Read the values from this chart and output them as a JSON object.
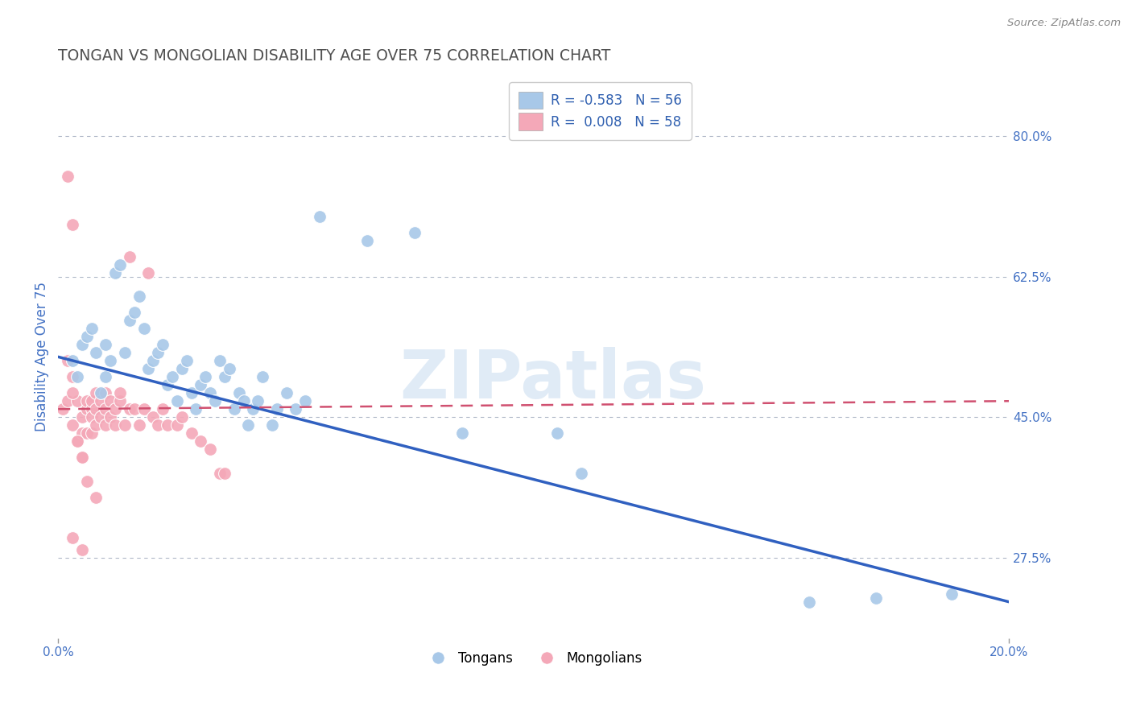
{
  "title": "TONGAN VS MONGOLIAN DISABILITY AGE OVER 75 CORRELATION CHART",
  "source": "Source: ZipAtlas.com",
  "ylabel": "Disability Age Over 75",
  "legend_blue_r": "R = -0.583",
  "legend_blue_n": "N = 56",
  "legend_pink_r": "R =  0.008",
  "legend_pink_n": "N = 58",
  "legend_blue_label": "Tongans",
  "legend_pink_label": "Mongolians",
  "blue_color": "#a8c8e8",
  "pink_color": "#f4a8b8",
  "blue_line_color": "#3060c0",
  "pink_line_color": "#d05070",
  "watermark": "ZIPatlas",
  "blue_scatter_x": [
    0.3,
    0.4,
    0.5,
    0.6,
    0.7,
    0.8,
    0.9,
    1.0,
    1.0,
    1.1,
    1.2,
    1.3,
    1.4,
    1.5,
    1.6,
    1.7,
    1.8,
    1.9,
    2.0,
    2.1,
    2.2,
    2.3,
    2.4,
    2.5,
    2.6,
    2.7,
    2.8,
    2.9,
    3.0,
    3.1,
    3.2,
    3.3,
    3.4,
    3.5,
    3.6,
    3.7,
    3.8,
    3.9,
    4.0,
    4.1,
    4.2,
    4.3,
    4.5,
    4.6,
    4.8,
    5.0,
    5.2,
    5.5,
    6.5,
    7.5,
    8.5,
    10.5,
    11.0,
    15.8,
    17.2,
    18.8
  ],
  "blue_scatter_y": [
    52.0,
    50.0,
    54.0,
    55.0,
    56.0,
    53.0,
    48.0,
    50.0,
    54.0,
    52.0,
    63.0,
    64.0,
    53.0,
    57.0,
    58.0,
    60.0,
    56.0,
    51.0,
    52.0,
    53.0,
    54.0,
    49.0,
    50.0,
    47.0,
    51.0,
    52.0,
    48.0,
    46.0,
    49.0,
    50.0,
    48.0,
    47.0,
    52.0,
    50.0,
    51.0,
    46.0,
    48.0,
    47.0,
    44.0,
    46.0,
    47.0,
    50.0,
    44.0,
    46.0,
    48.0,
    46.0,
    47.0,
    70.0,
    67.0,
    68.0,
    43.0,
    43.0,
    38.0,
    22.0,
    22.5,
    23.0
  ],
  "pink_scatter_x": [
    0.1,
    0.2,
    0.2,
    0.3,
    0.3,
    0.3,
    0.4,
    0.4,
    0.5,
    0.5,
    0.5,
    0.6,
    0.6,
    0.6,
    0.7,
    0.7,
    0.7,
    0.7,
    0.8,
    0.8,
    0.8,
    0.9,
    0.9,
    1.0,
    1.0,
    1.0,
    1.1,
    1.1,
    1.2,
    1.2,
    1.3,
    1.3,
    1.4,
    1.5,
    1.5,
    1.6,
    1.7,
    1.8,
    1.9,
    2.0,
    2.1,
    2.2,
    2.3,
    2.5,
    2.6,
    2.8,
    3.0,
    3.2,
    3.4,
    3.5,
    0.2,
    0.3,
    0.4,
    0.5,
    0.6,
    0.8,
    0.5,
    0.3
  ],
  "pink_scatter_y": [
    46.0,
    47.0,
    75.0,
    69.0,
    50.0,
    44.0,
    47.0,
    42.0,
    43.0,
    45.0,
    40.0,
    46.0,
    43.0,
    47.0,
    46.0,
    43.0,
    45.0,
    47.0,
    46.0,
    48.0,
    44.0,
    45.0,
    47.0,
    48.0,
    46.0,
    44.0,
    45.0,
    47.0,
    46.0,
    44.0,
    47.0,
    48.0,
    44.0,
    65.0,
    46.0,
    46.0,
    44.0,
    46.0,
    63.0,
    45.0,
    44.0,
    46.0,
    44.0,
    44.0,
    45.0,
    43.0,
    42.0,
    41.0,
    38.0,
    38.0,
    52.0,
    48.0,
    42.0,
    40.0,
    37.0,
    35.0,
    28.5,
    30.0
  ],
  "xlim": [
    0.0,
    20.0
  ],
  "ylim": [
    17.5,
    87.5
  ],
  "yticks": [
    27.5,
    45.0,
    62.5,
    80.0
  ],
  "xticks": [
    0.0,
    20.0
  ],
  "grid_color": "#b0b8c8",
  "background_color": "#ffffff",
  "title_color": "#505050",
  "axis_label_color": "#4472c4",
  "tick_color": "#4472c4",
  "blue_line_x0": 0.0,
  "blue_line_y0": 52.5,
  "blue_line_x1": 20.0,
  "blue_line_y1": 22.0,
  "pink_line_x0": 0.0,
  "pink_line_y0": 46.0,
  "pink_line_x1": 20.0,
  "pink_line_y1": 47.0
}
